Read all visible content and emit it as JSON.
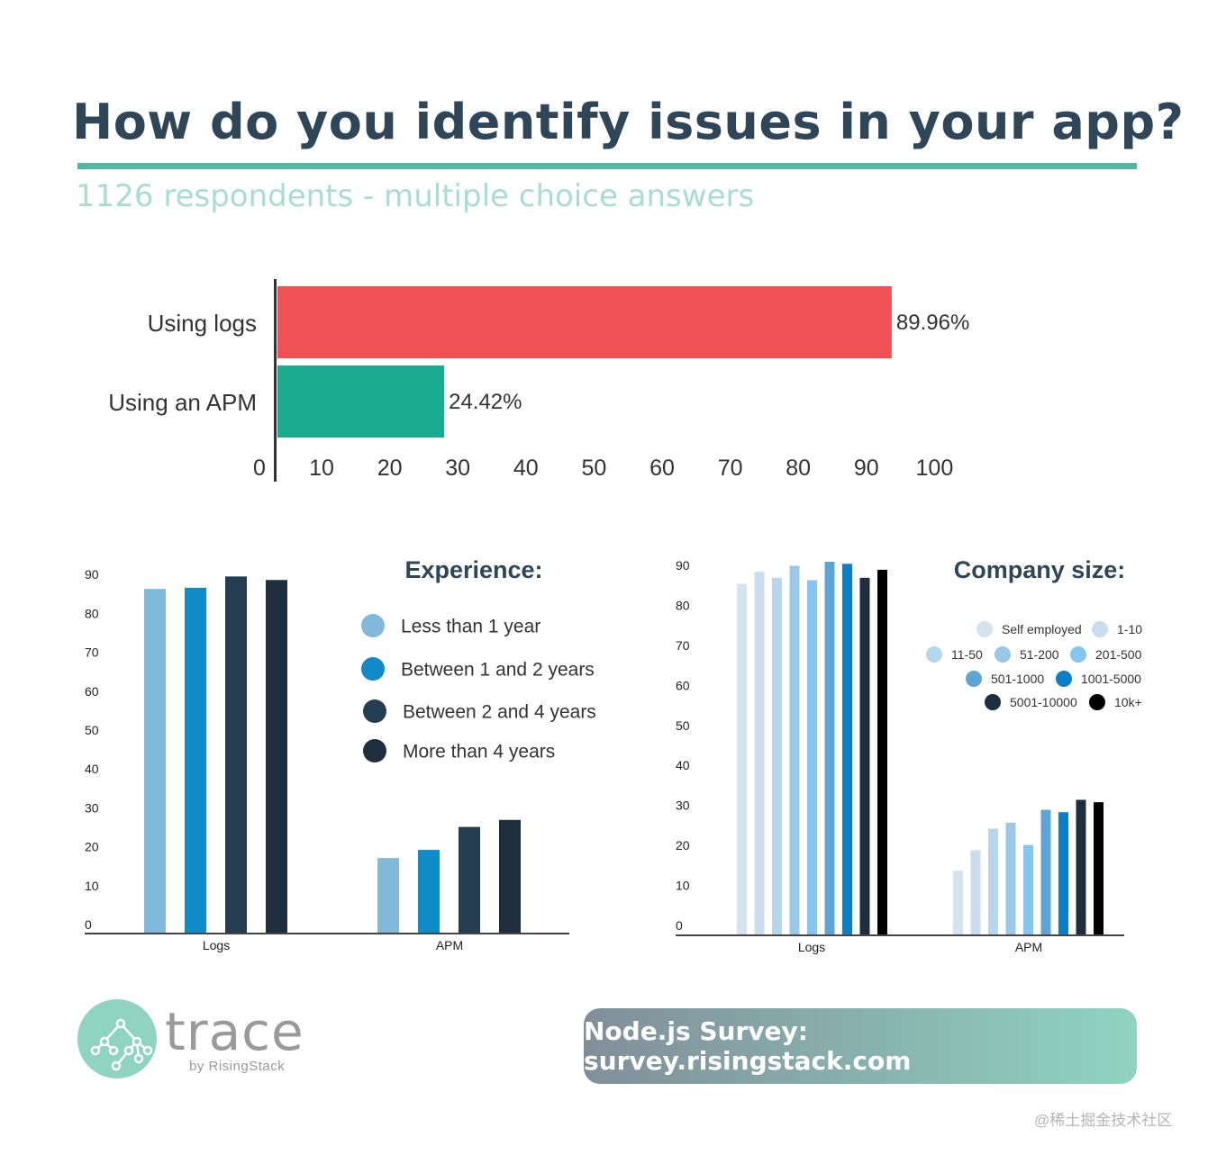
{
  "header": {
    "title": "How do you identify issues in your app?",
    "subtitle": "1126 respondents - multiple choice answers"
  },
  "colors": {
    "title": "#2f4558",
    "accent": "#4fb9a3",
    "subtitle": "#a8ddd0"
  },
  "chart_data": [
    {
      "type": "bar",
      "orientation": "horizontal",
      "categories": [
        "Using logs",
        "Using an APM"
      ],
      "values": [
        89.96,
        24.42
      ],
      "data_labels": [
        "89.96%",
        "24.42%"
      ],
      "colors": [
        "#f05155",
        "#1aab8f"
      ],
      "xlim": [
        0,
        100
      ],
      "xticks": [
        "0",
        "10",
        "20",
        "30",
        "40",
        "50",
        "60",
        "70",
        "80",
        "90",
        "100"
      ],
      "grid": false
    },
    {
      "type": "bar",
      "title": "Experience:",
      "categories": [
        "Logs",
        "APM"
      ],
      "yticks": [
        "0",
        "10",
        "20",
        "30",
        "40",
        "50",
        "60",
        "70",
        "80",
        "90"
      ],
      "ylim": [
        0,
        90
      ],
      "legend": "right",
      "grid": false,
      "series": [
        {
          "name": "Less than 1 year",
          "color": "#82b8da",
          "values": [
            86.3,
            17.1
          ]
        },
        {
          "name": "Between 1 and 2 years",
          "color": "#118ac8",
          "values": [
            86.6,
            19.2
          ]
        },
        {
          "name": "Between 2 and 4 years",
          "color": "#253d50",
          "values": [
            89.5,
            25.1
          ]
        },
        {
          "name": "More than 4 years",
          "color": "#1f2e3c",
          "values": [
            88.6,
            26.9
          ]
        }
      ]
    },
    {
      "type": "bar",
      "title": "Company size:",
      "categories": [
        "Logs",
        "APM"
      ],
      "yticks": [
        "0",
        "10",
        "20",
        "30",
        "40",
        "50",
        "60",
        "70",
        "80",
        "90"
      ],
      "ylim": [
        0,
        90
      ],
      "legend": "top-right",
      "grid": false,
      "series": [
        {
          "name": "Self employed",
          "color": "#d4e4ee",
          "values": [
            85.4,
            13.7
          ]
        },
        {
          "name": "1-10",
          "color": "#c9dded",
          "values": [
            88.4,
            18.8
          ]
        },
        {
          "name": "11-50",
          "color": "#b6d6ee",
          "values": [
            86.9,
            24.2
          ]
        },
        {
          "name": "51-200",
          "color": "#9ac8e6",
          "values": [
            89.9,
            25.7
          ]
        },
        {
          "name": "201-500",
          "color": "#85c6f0",
          "values": [
            86.3,
            20.1
          ]
        },
        {
          "name": "501-1000",
          "color": "#5ea5d6",
          "values": [
            90.9,
            28.9
          ]
        },
        {
          "name": "1001-5000",
          "color": "#0b80c8",
          "values": [
            90.4,
            28.3
          ]
        },
        {
          "name": "5001-10000",
          "color": "#1f2e3c",
          "values": [
            86.9,
            31.4
          ]
        },
        {
          "name": "10k+",
          "color": "#000000",
          "values": [
            88.9,
            30.8
          ]
        }
      ]
    }
  ],
  "footer": {
    "logo_word": "trace",
    "logo_sub": "by RisingStack",
    "survey_link": "Node.js Survey: survey.risingstack.com",
    "watermark": "@稀土掘金技术社区"
  }
}
